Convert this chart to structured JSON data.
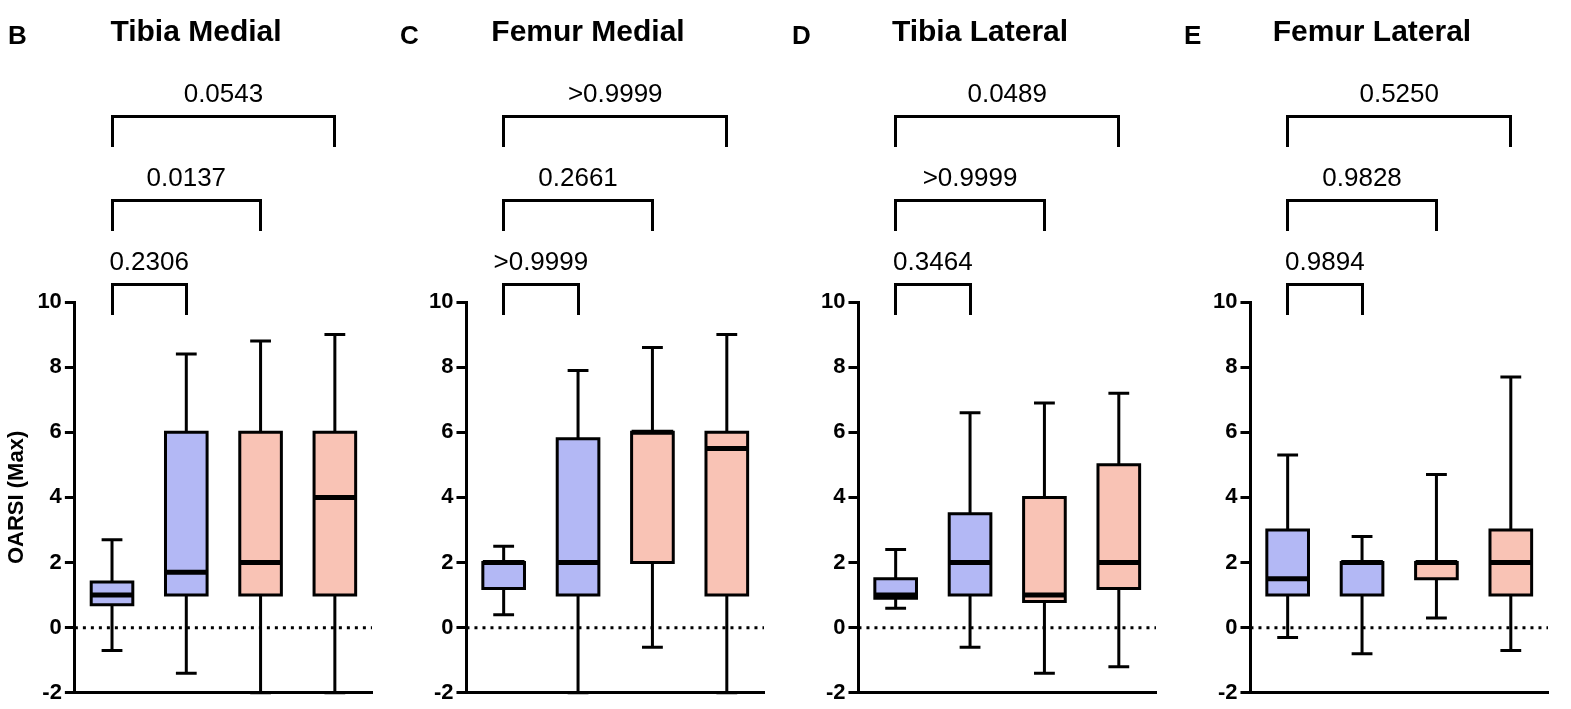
{
  "chart_data": [
    {
      "type": "box",
      "title": "Tibia Medial",
      "ylabel": "OARSI (Max)",
      "categories": [
        null,
        null,
        null,
        null
      ],
      "colors": [
        "#b3b8f5",
        "#b3b8f5",
        "#f9c3b5",
        "#f9c3b5"
      ],
      "ylim": [
        -2,
        10
      ],
      "yticks": [
        -2,
        0,
        2,
        4,
        6,
        8,
        10
      ],
      "grid": false,
      "tick_labels": "y",
      "ref_lines": [
        {
          "axis": "y",
          "value": 0,
          "line_style": "dotted"
        }
      ],
      "annotations": [
        "B",
        "0.2306",
        "0.0137",
        "0.0543"
      ],
      "boxes": [
        {
          "low": -0.7,
          "q1": 0.7,
          "median": 1,
          "q3": 1.4,
          "high": 2.7
        },
        {
          "low": -1.4,
          "q1": 1,
          "median": 1.7,
          "q3": 6,
          "high": 8.4
        },
        {
          "low": -2,
          "q1": 1,
          "median": 2,
          "q3": 6,
          "high": 8.8
        },
        {
          "low": -2,
          "q1": 1,
          "median": 4,
          "q3": 6,
          "high": 9
        }
      ]
    },
    {
      "type": "box",
      "title": "Femur Medial",
      "categories": [
        null,
        null,
        null,
        null
      ],
      "colors": [
        "#b3b8f5",
        "#b3b8f5",
        "#f9c3b5",
        "#f9c3b5"
      ],
      "ylim": [
        -2,
        10
      ],
      "yticks": [
        -2,
        0,
        2,
        4,
        6,
        8,
        10
      ],
      "grid": false,
      "tick_labels": "y",
      "ref_lines": [
        {
          "axis": "y",
          "value": 0,
          "line_style": "dotted"
        }
      ],
      "annotations": [
        "C",
        ">0.9999",
        "0.2661",
        ">0.9999"
      ],
      "boxes": [
        {
          "low": 0.4,
          "q1": 1.2,
          "median": 2,
          "q3": 2,
          "high": 2.5
        },
        {
          "low": -2,
          "q1": 1,
          "median": 2,
          "q3": 5.8,
          "high": 7.9
        },
        {
          "low": -0.6,
          "q1": 2,
          "median": 6,
          "q3": 6,
          "high": 8.6
        },
        {
          "low": -2,
          "q1": 1,
          "median": 5.5,
          "q3": 6,
          "high": 9
        }
      ]
    },
    {
      "type": "box",
      "title": "Tibia Lateral",
      "categories": [
        null,
        null,
        null,
        null
      ],
      "colors": [
        "#b3b8f5",
        "#b3b8f5",
        "#f9c3b5",
        "#f9c3b5"
      ],
      "ylim": [
        -2,
        10
      ],
      "yticks": [
        -2,
        0,
        2,
        4,
        6,
        8,
        10
      ],
      "grid": false,
      "tick_labels": "y",
      "ref_lines": [
        {
          "axis": "y",
          "value": 0,
          "line_style": "dotted"
        }
      ],
      "annotations": [
        "D",
        "0.3464",
        ">0.9999",
        "0.0489"
      ],
      "boxes": [
        {
          "low": 0.6,
          "q1": 0.9,
          "median": 1,
          "q3": 1.5,
          "high": 2.4
        },
        {
          "low": -0.6,
          "q1": 1,
          "median": 2,
          "q3": 3.5,
          "high": 6.6
        },
        {
          "low": -1.4,
          "q1": 0.8,
          "median": 1,
          "q3": 4,
          "high": 6.9
        },
        {
          "low": -1.2,
          "q1": 1.2,
          "median": 2,
          "q3": 5,
          "high": 7.2
        }
      ]
    },
    {
      "type": "box",
      "title": "Femur Lateral",
      "categories": [
        null,
        null,
        null,
        null
      ],
      "colors": [
        "#b3b8f5",
        "#b3b8f5",
        "#f9c3b5",
        "#f9c3b5"
      ],
      "ylim": [
        -2,
        10
      ],
      "yticks": [
        -2,
        0,
        2,
        4,
        6,
        8,
        10
      ],
      "grid": false,
      "tick_labels": "y",
      "ref_lines": [
        {
          "axis": "y",
          "value": 0,
          "line_style": "dotted"
        }
      ],
      "annotations": [
        "E",
        "0.9894",
        "0.9828",
        "0.5250"
      ],
      "boxes": [
        {
          "low": -0.3,
          "q1": 1,
          "median": 1.5,
          "q3": 3,
          "high": 5.3
        },
        {
          "low": -0.8,
          "q1": 1,
          "median": 2,
          "q3": 2,
          "high": 2.8
        },
        {
          "low": 0.3,
          "q1": 1.5,
          "median": 2,
          "q3": 2,
          "high": 4.7
        },
        {
          "low": -0.7,
          "q1": 1,
          "median": 2,
          "q3": 3,
          "high": 7.7
        }
      ]
    }
  ]
}
